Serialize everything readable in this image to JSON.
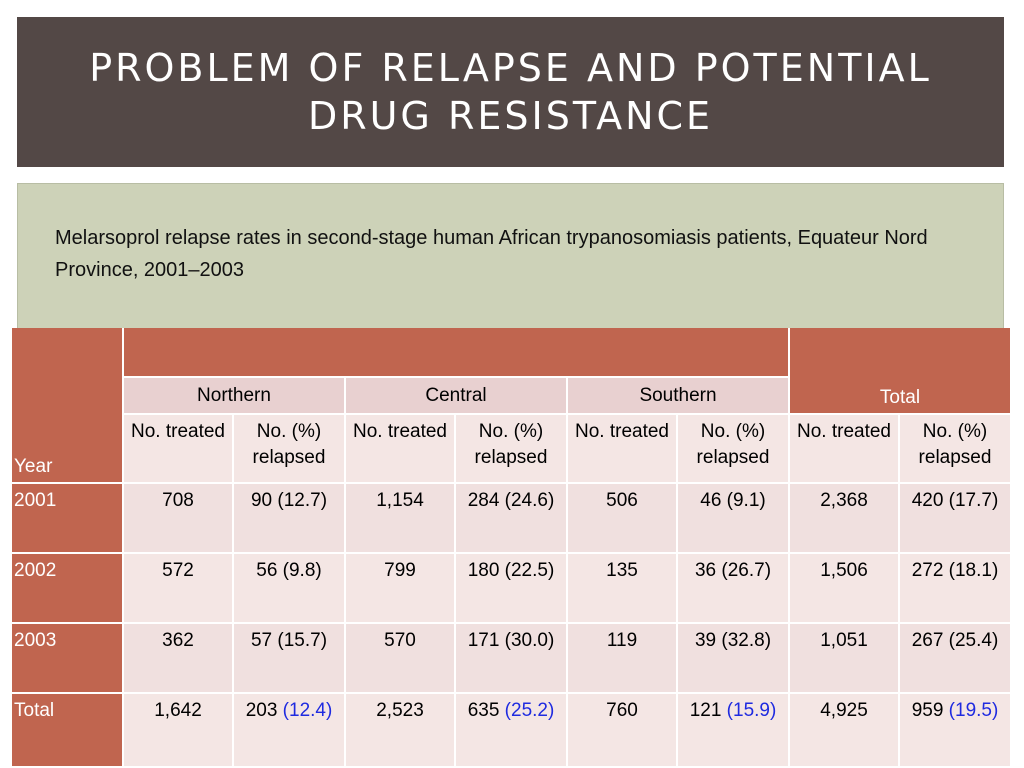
{
  "title": "PROBLEM OF RELAPSE AND POTENTIAL DRUG RESISTANCE",
  "subtitle": "Melarsoprol relapse rates in second-stage human African trypanosomiasis patients, Equateur Nord Province, 2001–2003",
  "table": {
    "year_header": "Year",
    "total_header": "Total",
    "regions": [
      "Northern",
      "Central",
      "Southern"
    ],
    "col_treated": "No. treated",
    "col_relapsed": "No. (%) relapsed",
    "rows": [
      {
        "year": "2001",
        "cells": [
          {
            "treated": "708",
            "relapsed": "90 (12.7)"
          },
          {
            "treated": "1,154",
            "relapsed": "284 (24.6)"
          },
          {
            "treated": "506",
            "relapsed": "46 (9.1)"
          },
          {
            "treated": "2,368",
            "relapsed": "420 (17.7)"
          }
        ]
      },
      {
        "year": "2002",
        "cells": [
          {
            "treated": "572",
            "relapsed": "56 (9.8)"
          },
          {
            "treated": "799",
            "relapsed": "180 (22.5)"
          },
          {
            "treated": "135",
            "relapsed": "36 (26.7)"
          },
          {
            "treated": "1,506",
            "relapsed": "272 (18.1)"
          }
        ]
      },
      {
        "year": "2003",
        "cells": [
          {
            "treated": "362",
            "relapsed": "57 (15.7)"
          },
          {
            "treated": "570",
            "relapsed": "171 (30.0)"
          },
          {
            "treated": "119",
            "relapsed": "39 (32.8)"
          },
          {
            "treated": "1,051",
            "relapsed": "267 (25.4)"
          }
        ]
      }
    ],
    "total_row": {
      "label": "Total",
      "cells": [
        {
          "treated": "1,642",
          "relapsed_n": "203",
          "relapsed_pct": "(12.4)"
        },
        {
          "treated": "2,523",
          "relapsed_n": "635",
          "relapsed_pct": "(25.2)"
        },
        {
          "treated": "760",
          "relapsed_n": "121",
          "relapsed_pct": "(15.9)"
        },
        {
          "treated": "4,925",
          "relapsed_n": "959",
          "relapsed_pct": "(19.5)"
        }
      ]
    }
  },
  "colors": {
    "title_bar": "#534846",
    "content_box": "#cdd2b8",
    "header_red": "#c0654f",
    "highlight_blue": "#1f2be0"
  }
}
